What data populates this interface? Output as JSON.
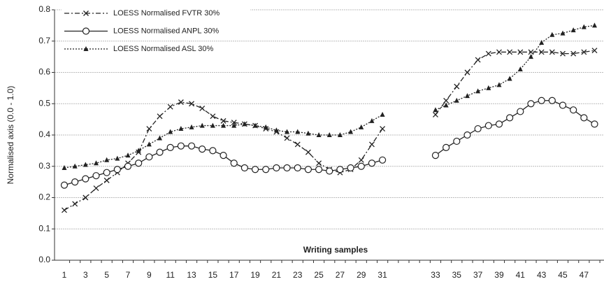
{
  "chart_data": {
    "type": "line",
    "x_label": "Writing samples",
    "y_label": "Normalised axis (0.0 - 1.0)",
    "categories": [
      "1",
      null,
      "3",
      null,
      "5",
      null,
      "7",
      null,
      "9",
      null,
      "11",
      null,
      "13",
      null,
      "15",
      null,
      "17",
      null,
      "19",
      null,
      "21",
      null,
      "23",
      null,
      "25",
      null,
      "27",
      null,
      "29",
      null,
      "31",
      null,
      null,
      null,
      null,
      "33",
      null,
      "35",
      null,
      "37",
      null,
      "39",
      null,
      "41",
      null,
      "43",
      null,
      "45",
      null,
      "47",
      null
    ],
    "series": [
      {
        "name": "LOESS Normalised FVTR 30%",
        "color": "#222222",
        "marker": "x",
        "dash": "dashdot",
        "values": [
          0.16,
          0.18,
          0.2,
          0.23,
          0.255,
          0.28,
          0.31,
          0.345,
          0.42,
          0.46,
          0.49,
          0.505,
          0.5,
          0.485,
          0.46,
          0.445,
          0.44,
          0.435,
          0.43,
          0.42,
          0.41,
          0.39,
          0.37,
          0.345,
          0.31,
          0.29,
          0.28,
          0.29,
          0.32,
          0.37,
          0.42,
          null,
          null,
          null,
          null,
          0.465,
          0.51,
          0.555,
          0.6,
          0.64,
          0.66,
          0.665,
          0.665,
          0.665,
          0.665,
          0.665,
          0.665,
          0.66,
          0.66,
          0.665,
          0.67
        ]
      },
      {
        "name": "LOESS Normalised ANPL 30%",
        "color": "#222222",
        "marker": "circle",
        "dash": "solid",
        "values": [
          0.24,
          0.25,
          0.26,
          0.27,
          0.28,
          0.29,
          0.3,
          0.31,
          0.33,
          0.345,
          0.36,
          0.365,
          0.365,
          0.355,
          0.35,
          0.335,
          0.31,
          0.295,
          0.29,
          0.29,
          0.295,
          0.295,
          0.295,
          0.29,
          0.29,
          0.285,
          0.29,
          0.295,
          0.3,
          0.31,
          0.32,
          null,
          null,
          null,
          null,
          0.335,
          0.36,
          0.38,
          0.4,
          0.42,
          0.43,
          0.435,
          0.455,
          0.475,
          0.5,
          0.51,
          0.51,
          0.495,
          0.48,
          0.455,
          0.435
        ]
      },
      {
        "name": "LOESS Normalised ASL 30%",
        "color": "#222222",
        "marker": "triangle",
        "dash": "dotted",
        "values": [
          0.295,
          0.3,
          0.305,
          0.31,
          0.32,
          0.325,
          0.335,
          0.35,
          0.37,
          0.39,
          0.41,
          0.42,
          0.425,
          0.43,
          0.43,
          0.43,
          0.43,
          0.435,
          0.43,
          0.425,
          0.415,
          0.41,
          0.41,
          0.405,
          0.4,
          0.4,
          0.4,
          0.41,
          0.425,
          0.445,
          0.465,
          null,
          null,
          null,
          null,
          0.48,
          0.495,
          0.51,
          0.525,
          0.54,
          0.55,
          0.56,
          0.58,
          0.61,
          0.65,
          0.695,
          0.72,
          0.725,
          0.735,
          0.745,
          0.75
        ]
      }
    ],
    "ylim": [
      0,
      0.8
    ],
    "yticks": [
      {
        "value": 0,
        "label": "0.0"
      },
      0.1,
      0.2,
      0.3,
      0.4,
      0.5,
      0.6,
      0.7,
      0.8
    ],
    "grid": true,
    "legend": "top-left"
  }
}
